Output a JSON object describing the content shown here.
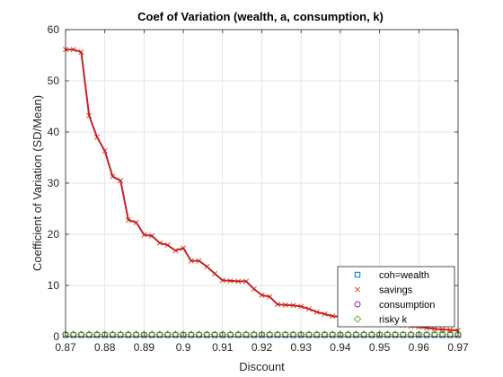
{
  "chart_data": {
    "type": "line",
    "title": "Coef of Variation (wealth, a, consumption, k)",
    "xlabel": "Discount",
    "ylabel": "Coefficient of Variation (SD/Mean)",
    "xlim": [
      0.87,
      0.97
    ],
    "ylim": [
      0,
      60
    ],
    "xticks": [
      "0.87",
      "0.88",
      "0.89",
      "0.9",
      "0.91",
      "0.92",
      "0.93",
      "0.94",
      "0.95",
      "0.96",
      "0.97"
    ],
    "yticks": [
      "0",
      "10",
      "20",
      "30",
      "40",
      "50",
      "60"
    ],
    "grid": true,
    "legend_position": "bottom-right",
    "x": [
      0.87,
      0.872,
      0.874,
      0.876,
      0.878,
      0.88,
      0.882,
      0.884,
      0.886,
      0.888,
      0.89,
      0.892,
      0.894,
      0.896,
      0.898,
      0.9,
      0.902,
      0.904,
      0.906,
      0.908,
      0.91,
      0.912,
      0.914,
      0.916,
      0.918,
      0.92,
      0.922,
      0.924,
      0.926,
      0.928,
      0.93,
      0.932,
      0.934,
      0.936,
      0.938,
      0.94,
      0.942,
      0.944,
      0.946,
      0.948,
      0.95,
      0.952,
      0.954,
      0.956,
      0.958,
      0.96,
      0.962,
      0.964,
      0.966,
      0.968,
      0.97
    ],
    "series": [
      {
        "name": "coh=wealth",
        "marker": "square",
        "color": "#0072BD",
        "values": [
          0.3,
          0.3,
          0.3,
          0.3,
          0.3,
          0.3,
          0.3,
          0.3,
          0.3,
          0.3,
          0.3,
          0.3,
          0.3,
          0.3,
          0.3,
          0.3,
          0.3,
          0.3,
          0.3,
          0.3,
          0.3,
          0.3,
          0.3,
          0.3,
          0.3,
          0.3,
          0.3,
          0.3,
          0.3,
          0.3,
          0.3,
          0.3,
          0.3,
          0.3,
          0.3,
          0.3,
          0.3,
          0.3,
          0.3,
          0.3,
          0.3,
          0.3,
          0.3,
          0.3,
          0.3,
          0.3,
          0.3,
          0.3,
          0.3,
          0.3,
          0.3
        ]
      },
      {
        "name": "savings",
        "marker": "x",
        "color": "#D95319",
        "values": [
          56.1,
          56.1,
          55.6,
          43.2,
          39.0,
          36.3,
          31.3,
          30.5,
          22.8,
          22.3,
          19.9,
          19.7,
          18.3,
          17.9,
          16.8,
          17.3,
          14.8,
          14.8,
          13.7,
          12.3,
          11.0,
          10.9,
          10.8,
          10.8,
          9.3,
          8.1,
          7.8,
          6.3,
          6.2,
          6.1,
          5.9,
          5.4,
          4.8,
          4.4,
          4.0,
          3.9,
          3.5,
          3.3,
          3.1,
          3.0,
          2.8,
          2.6,
          2.4,
          2.2,
          2.0,
          1.9,
          1.7,
          1.5,
          1.4,
          1.3,
          1.2
        ]
      },
      {
        "name": "consumption",
        "marker": "circle",
        "color": "#7E2F8E",
        "values": [
          0.35,
          0.35,
          0.35,
          0.35,
          0.35,
          0.35,
          0.35,
          0.35,
          0.35,
          0.35,
          0.35,
          0.35,
          0.35,
          0.35,
          0.35,
          0.35,
          0.35,
          0.35,
          0.35,
          0.35,
          0.35,
          0.35,
          0.35,
          0.35,
          0.35,
          0.35,
          0.35,
          0.35,
          0.35,
          0.35,
          0.35,
          0.35,
          0.35,
          0.35,
          0.35,
          0.35,
          0.35,
          0.35,
          0.35,
          0.35,
          0.35,
          0.35,
          0.35,
          0.35,
          0.35,
          0.35,
          0.35,
          0.35,
          0.35,
          0.35,
          0.35
        ]
      },
      {
        "name": "risky k",
        "marker": "diamond",
        "color": "#77AC30",
        "values": [
          0.45,
          0.45,
          0.45,
          0.45,
          0.45,
          0.45,
          0.45,
          0.45,
          0.45,
          0.45,
          0.45,
          0.45,
          0.45,
          0.45,
          0.45,
          0.45,
          0.45,
          0.45,
          0.45,
          0.45,
          0.45,
          0.45,
          0.45,
          0.45,
          0.45,
          0.45,
          0.45,
          0.45,
          0.45,
          0.45,
          0.45,
          0.45,
          0.45,
          0.45,
          0.45,
          0.45,
          0.45,
          0.45,
          0.45,
          0.45,
          0.45,
          0.45,
          0.45,
          0.45,
          0.45,
          0.45,
          0.45,
          0.45,
          0.45,
          0.45,
          0.45
        ]
      }
    ],
    "line_overlay": {
      "series": "savings",
      "color": "#C8202A"
    }
  }
}
